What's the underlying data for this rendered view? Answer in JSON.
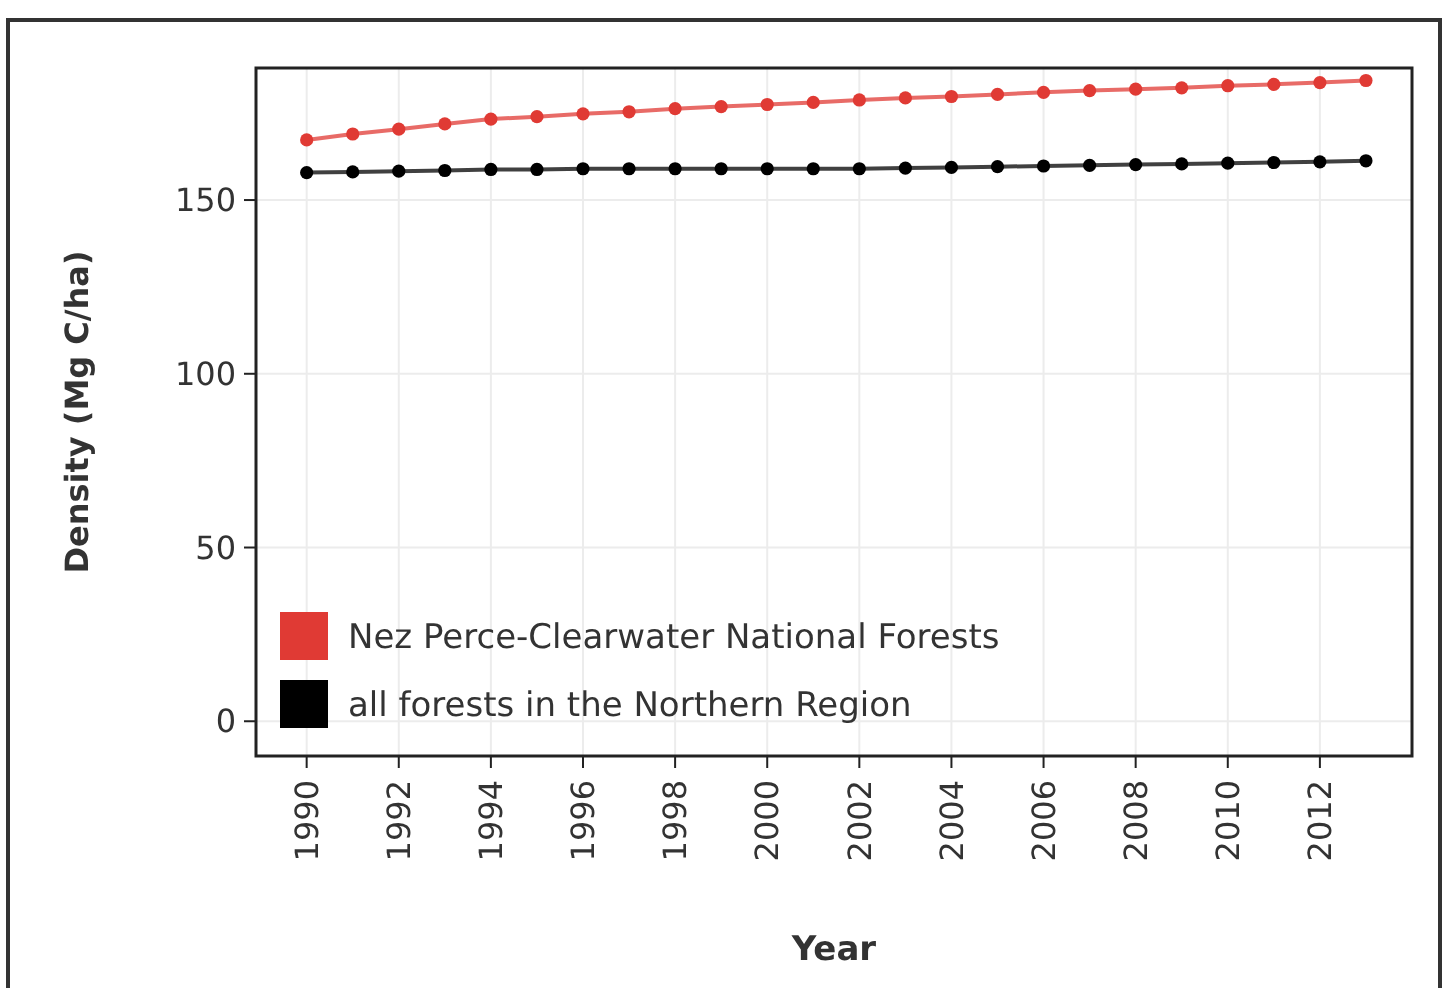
{
  "chart_data": {
    "type": "line",
    "xlabel": "Year",
    "ylabel": "Density (Mg C/ha)",
    "x": [
      1990,
      1991,
      1992,
      1993,
      1994,
      1995,
      1996,
      1997,
      1998,
      1999,
      2000,
      2001,
      2002,
      2003,
      2004,
      2005,
      2006,
      2007,
      2008,
      2009,
      2010,
      2011,
      2012,
      2013
    ],
    "series": [
      {
        "name": "Nez Perce-Clearwater National Forests",
        "color": "#e03a34",
        "values": [
          167.3,
          169.0,
          170.4,
          171.9,
          173.3,
          174.0,
          174.8,
          175.4,
          176.3,
          176.9,
          177.5,
          178.1,
          178.8,
          179.4,
          179.8,
          180.4,
          181.0,
          181.5,
          181.9,
          182.3,
          182.9,
          183.3,
          183.8,
          184.4
        ]
      },
      {
        "name": "all forests in the Northern Region",
        "color": "#000000",
        "values": [
          157.9,
          158.1,
          158.3,
          158.5,
          158.8,
          158.8,
          159.0,
          159.0,
          159.0,
          159.0,
          159.0,
          159.0,
          159.0,
          159.2,
          159.4,
          159.6,
          159.8,
          160.0,
          160.2,
          160.4,
          160.6,
          160.8,
          161.0,
          161.3
        ]
      }
    ],
    "xlim": [
      1988.9,
      2014
    ],
    "xticks": [
      1990,
      1992,
      1994,
      1996,
      1998,
      2000,
      2002,
      2004,
      2006,
      2008,
      2010,
      2012
    ],
    "ylim": [
      -10,
      188
    ],
    "yticks": [
      0,
      50,
      100,
      150
    ],
    "grid": true,
    "legend": "bottom left",
    "marker": "circle",
    "line_style": "solid"
  }
}
